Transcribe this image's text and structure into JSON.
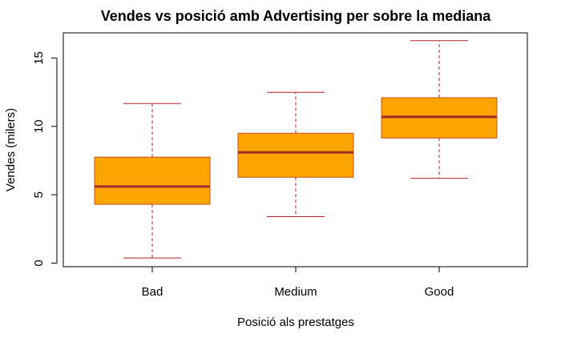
{
  "chart_data": {
    "type": "boxplot",
    "title": "Vendes vs posició amb Advertising per sobre la mediana",
    "xlabel": "Posició als prestatges",
    "ylabel": "Vendes (milers)",
    "categories": [
      "Bad",
      "Medium",
      "Good"
    ],
    "ylim": [
      0,
      16.5
    ],
    "yticks": [
      0,
      5,
      10,
      15
    ],
    "boxes": [
      {
        "category": "Bad",
        "whisker_low": 0.37,
        "q1": 4.3,
        "median": 5.6,
        "q3": 7.75,
        "whisker_high": 11.67
      },
      {
        "category": "Medium",
        "whisker_low": 3.4,
        "q1": 6.28,
        "median": 8.1,
        "q3": 9.5,
        "whisker_high": 12.49
      },
      {
        "category": "Good",
        "whisker_low": 6.2,
        "q1": 9.15,
        "median": 10.7,
        "q3": 12.1,
        "whisker_high": 16.27
      }
    ],
    "grid": false,
    "colors": {
      "box_fill": "#ffa500",
      "box_border": "#c8501e",
      "median": "#a52a2a",
      "whisker": "#b22222"
    }
  }
}
